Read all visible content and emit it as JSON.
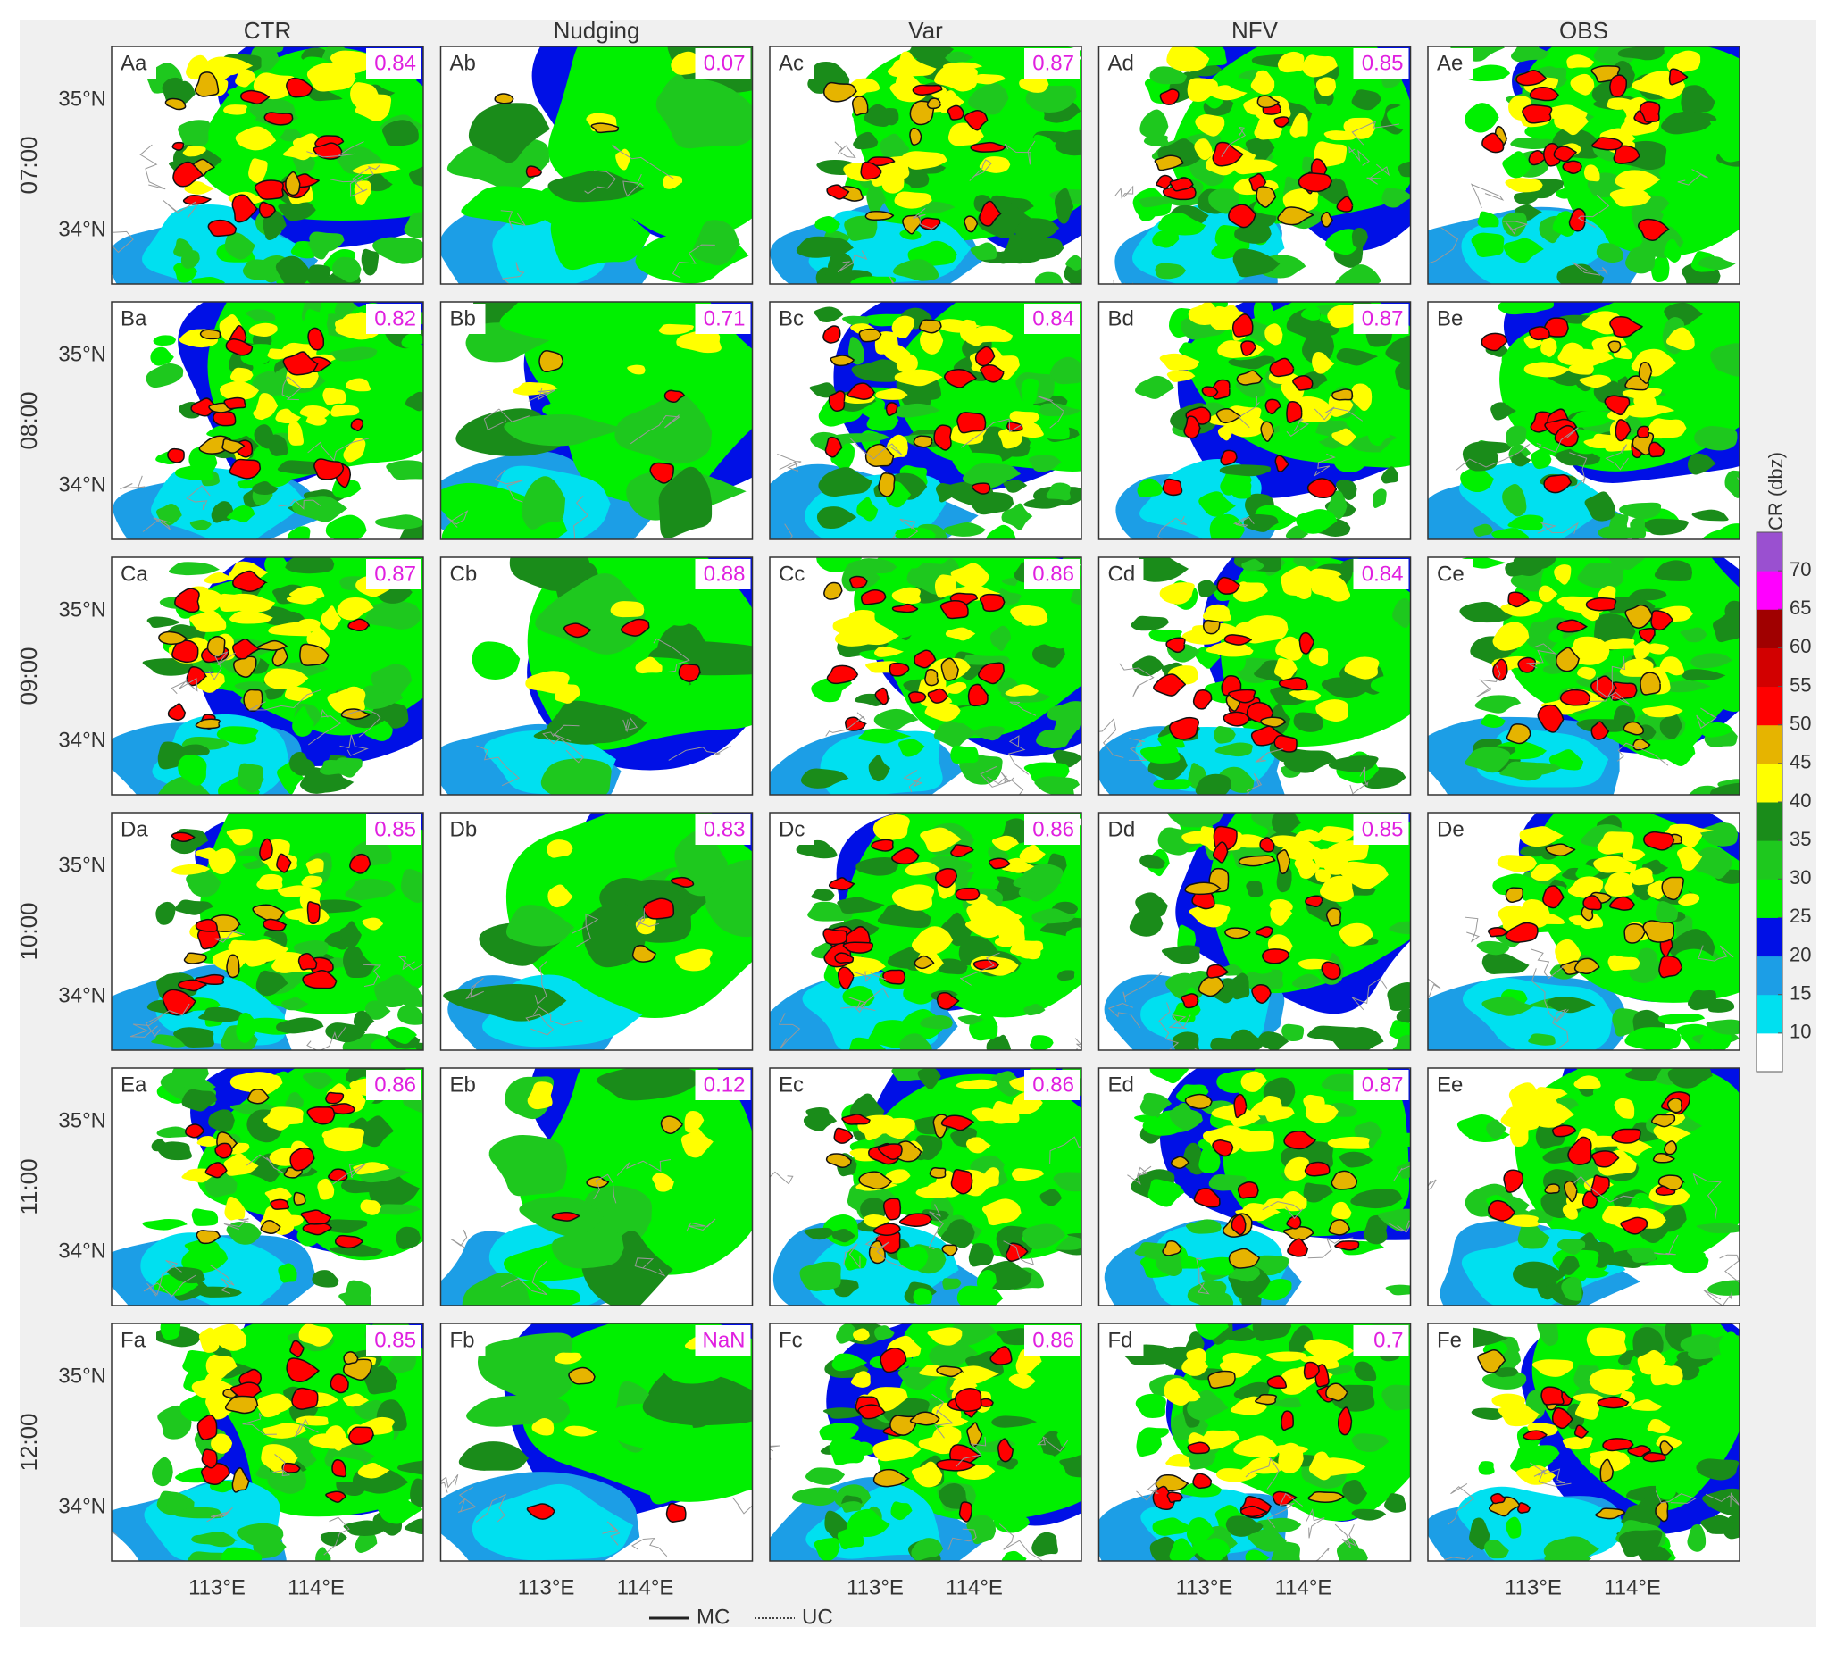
{
  "columns": [
    "CTR",
    "Nudging",
    "Var",
    "NFV",
    "OBS"
  ],
  "rows": [
    {
      "time": "07:00",
      "panels": [
        {
          "label": "Aa",
          "score": 0.84
        },
        {
          "label": "Ab",
          "score": 0.07
        },
        {
          "label": "Ac",
          "score": 0.87
        },
        {
          "label": "Ad",
          "score": 0.85
        },
        {
          "label": "Ae"
        }
      ]
    },
    {
      "time": "08:00",
      "panels": [
        {
          "label": "Ba",
          "score": 0.82
        },
        {
          "label": "Bb",
          "score": 0.71
        },
        {
          "label": "Bc",
          "score": 0.84
        },
        {
          "label": "Bd",
          "score": 0.87
        },
        {
          "label": "Be"
        }
      ]
    },
    {
      "time": "09:00",
      "panels": [
        {
          "label": "Ca",
          "score": 0.87
        },
        {
          "label": "Cb",
          "score": 0.88
        },
        {
          "label": "Cc",
          "score": 0.86
        },
        {
          "label": "Cd",
          "score": 0.84
        },
        {
          "label": "Ce"
        }
      ]
    },
    {
      "time": "10:00",
      "panels": [
        {
          "label": "Da",
          "score": 0.85
        },
        {
          "label": "Db",
          "score": 0.83
        },
        {
          "label": "Dc",
          "score": 0.86
        },
        {
          "label": "Dd",
          "score": 0.85
        },
        {
          "label": "De"
        }
      ]
    },
    {
      "time": "11:00",
      "panels": [
        {
          "label": "Ea",
          "score": 0.86
        },
        {
          "label": "Eb",
          "score": 0.12
        },
        {
          "label": "Ec",
          "score": 0.86
        },
        {
          "label": "Ed",
          "score": 0.87
        },
        {
          "label": "Ee"
        }
      ]
    },
    {
      "time": "12:00",
      "panels": [
        {
          "label": "Fa",
          "score": 0.85
        },
        {
          "label": "Fb",
          "score": "NaN"
        },
        {
          "label": "Fc",
          "score": 0.86
        },
        {
          "label": "Fd",
          "score": 0.7
        },
        {
          "label": "Fe"
        }
      ]
    }
  ],
  "lat_labels": [
    "35°N",
    "34°N"
  ],
  "lon_labels": [
    "113°E",
    "114°E"
  ],
  "colorbar": {
    "label": "CR (dbz)",
    "lim": [
      5,
      75
    ],
    "ticks": [
      10,
      15,
      20,
      25,
      30,
      35,
      40,
      45,
      50,
      55,
      60,
      65,
      70
    ],
    "colors": [
      "#ffffff",
      "#00e0f0",
      "#1c9ee6",
      "#0010e6",
      "#00f000",
      "#1ec81e",
      "#1a8c1a",
      "#ffff00",
      "#e6b400",
      "#ff0000",
      "#d20000",
      "#a00000",
      "#ff00ff",
      "#9a50d0"
    ]
  },
  "legend": [
    "MC",
    "UC"
  ]
}
